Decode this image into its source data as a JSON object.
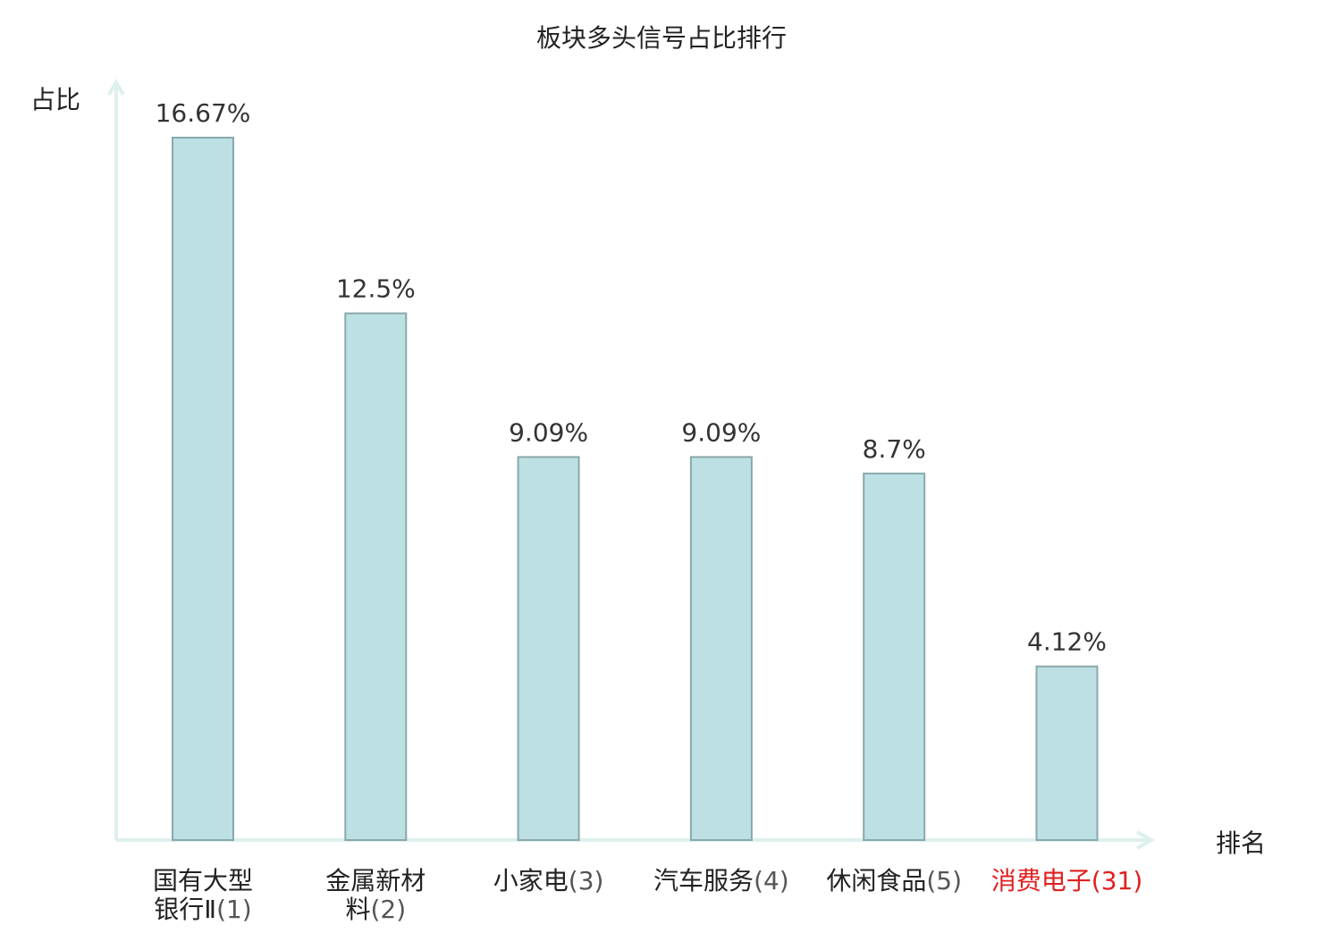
{
  "colors": {
    "bar_fill": "#bce0e3",
    "bar_stroke": "#8aa8aa",
    "axis": "#ddf0ee",
    "highlight_text": "#e02020"
  },
  "chart_data": {
    "type": "bar",
    "title": "板块多头信号占比排行",
    "ylabel": "占比",
    "xlabel": "排名",
    "grid": false,
    "legend": "none",
    "ylim": [
      0,
      17.5
    ],
    "categories": [
      {
        "name_lines": [
          "国有大型",
          "银行Ⅱ"
        ],
        "rank": "(1)",
        "highlight": false
      },
      {
        "name_lines": [
          "金属新材",
          "料"
        ],
        "rank": "(2)",
        "highlight": false
      },
      {
        "name_lines": [
          "小家电"
        ],
        "rank": "(3)",
        "highlight": false
      },
      {
        "name_lines": [
          "汽车服务"
        ],
        "rank": "(4)",
        "highlight": false
      },
      {
        "name_lines": [
          "休闲食品"
        ],
        "rank": "(5)",
        "highlight": false
      },
      {
        "name_lines": [
          "消费电子"
        ],
        "rank": "(31)",
        "highlight": true
      }
    ],
    "values": [
      16.67,
      12.5,
      9.09,
      9.09,
      8.7,
      4.12
    ],
    "value_labels": [
      "16.67%",
      "12.5%",
      "9.09%",
      "9.09%",
      "8.7%",
      "4.12%"
    ]
  }
}
